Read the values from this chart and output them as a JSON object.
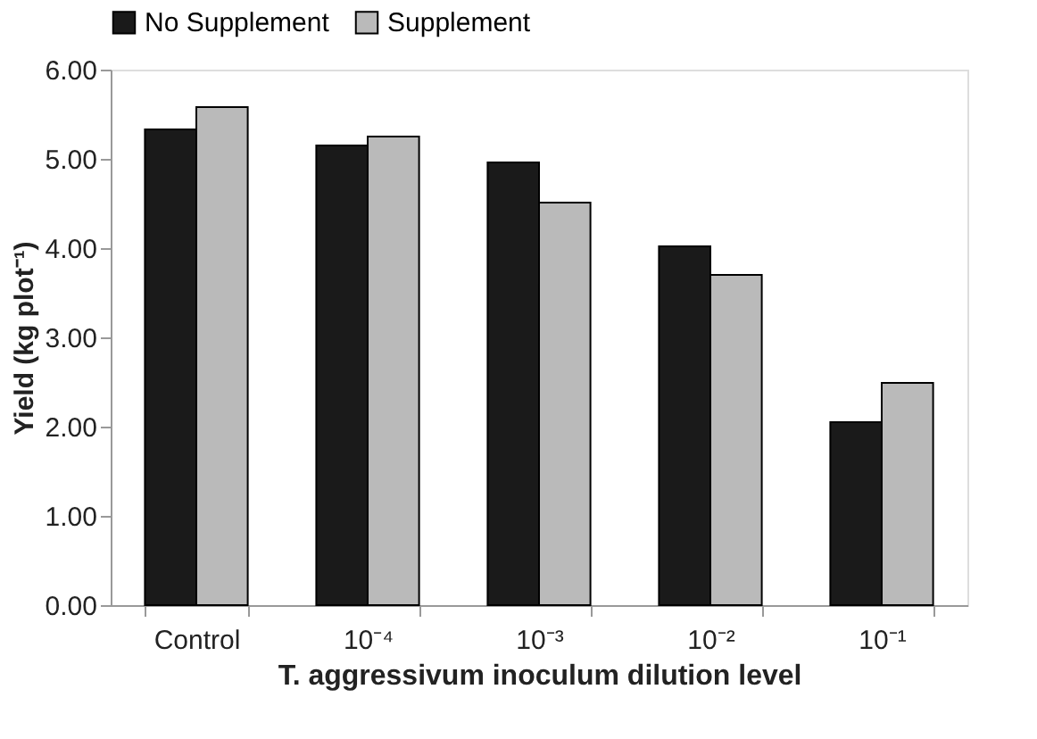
{
  "chart_data": {
    "type": "bar",
    "xlabel": "T. aggressivum inoculum dilution level",
    "ylabel": "Yield (kg plot⁻¹)",
    "categories": [
      "Control",
      "10⁻⁴",
      "10⁻³",
      "10⁻²",
      "10⁻¹"
    ],
    "series": [
      {
        "name": "No Supplement",
        "color": "#1a1a1a",
        "values": [
          5.33,
          5.15,
          4.96,
          4.02,
          2.05
        ]
      },
      {
        "name": "Supplement",
        "color": "#bababa",
        "values": [
          5.58,
          5.25,
          4.51,
          3.7,
          2.49
        ]
      }
    ],
    "ylim": [
      0,
      6
    ],
    "yticks": [
      {
        "value": 0,
        "label": "0.00"
      },
      {
        "value": 1,
        "label": "1.00"
      },
      {
        "value": 2,
        "label": "2.00"
      },
      {
        "value": 3,
        "label": "3.00"
      },
      {
        "value": 4,
        "label": "4.00"
      },
      {
        "value": 5,
        "label": "5.00"
      },
      {
        "value": 6,
        "label": "6.00"
      }
    ],
    "legend": "top",
    "grid": false
  }
}
